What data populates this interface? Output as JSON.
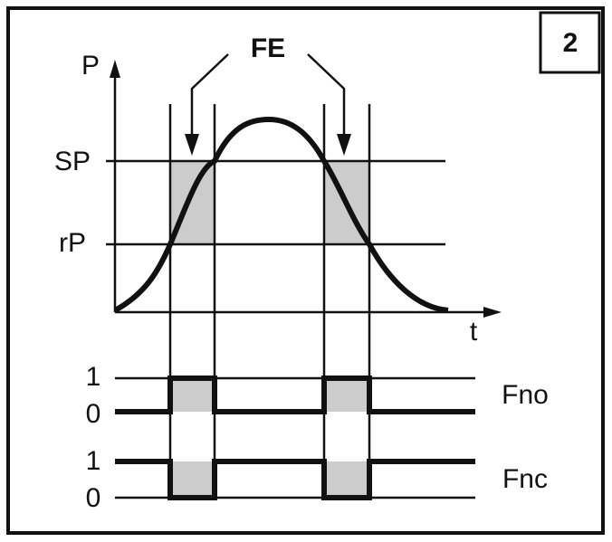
{
  "badge": "2",
  "axis": {
    "y_label": "P",
    "x_label": "t"
  },
  "annotation": "FE",
  "levels": {
    "sp": "SP",
    "rp": "rP"
  },
  "outputs": [
    {
      "high": "1",
      "low": "0",
      "label": "Fno"
    },
    {
      "high": "1",
      "low": "0",
      "label": "Fnc"
    }
  ]
}
